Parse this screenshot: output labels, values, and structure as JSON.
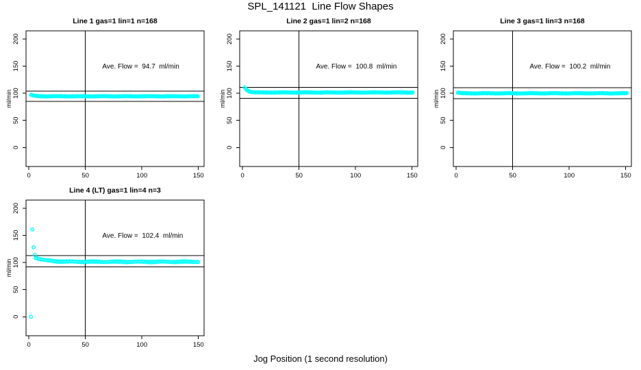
{
  "page": {
    "main_title": "SPL_141121  Line Flow Shapes",
    "x_axis_label": "Jog Position (1 second resolution)",
    "y_axis_label": "ml/min",
    "background": "#ffffff"
  },
  "style": {
    "point_color": "#00ffff",
    "line_color": "#000000",
    "marker": "open-circle"
  },
  "axes": {
    "x_ticks": [
      0,
      50,
      100,
      150
    ],
    "y_ticks": [
      0,
      50,
      100,
      150,
      200
    ],
    "xlim": [
      -2.5,
      155
    ],
    "ylim": [
      -35,
      215
    ],
    "vline_x": 50,
    "grid": false
  },
  "chart_data": [
    {
      "type": "scatter",
      "line": 1,
      "gas": 1,
      "lin": 1,
      "n": 168,
      "title": "Line 1 gas=1 lin=1 n=168",
      "annotation": "Ave. Flow =  94.7  ml/min",
      "ave_flow_ml_min": 94.7,
      "ref_lines_y": [
        104.2,
        85.2
      ],
      "vline_x": 50,
      "annotation_xy": [
        65,
        150
      ],
      "notable_points": [],
      "band": {
        "x_from": 2,
        "x_to": 150.5,
        "step": 0.9,
        "y_start": 97.2,
        "y_settle": 94.4,
        "tau": 2.5,
        "jitter": 0.55
      }
    },
    {
      "type": "scatter",
      "line": 2,
      "gas": 1,
      "lin": 2,
      "n": 168,
      "title": "Line 2 gas=1 lin=2 n=168",
      "annotation": "Ave. Flow =  100.8  ml/min",
      "ave_flow_ml_min": 100.8,
      "ref_lines_y": [
        110.9,
        90.7
      ],
      "vline_x": 50,
      "annotation_xy": [
        65,
        150
      ],
      "notable_points": [],
      "band": {
        "x_from": 2,
        "x_to": 151,
        "step": 0.9,
        "y_start": 111,
        "y_settle": 101.4,
        "tau": 2.6,
        "jitter": 0.6
      }
    },
    {
      "type": "scatter",
      "line": 3,
      "gas": 1,
      "lin": 3,
      "n": 168,
      "title": "Line 3 gas=1 lin=3 n=168",
      "annotation": "Ave. Flow =  100.2  ml/min",
      "ave_flow_ml_min": 100.2,
      "ref_lines_y": [
        110.2,
        90.2
      ],
      "vline_x": 50,
      "annotation_xy": [
        65,
        150
      ],
      "notable_points": [],
      "band": {
        "x_from": 1.5,
        "x_to": 151,
        "step": 0.9,
        "y_start": 101.2,
        "y_settle": 99.9,
        "tau": 2,
        "jitter": 0.65
      }
    },
    {
      "type": "scatter",
      "line": 4,
      "gas": 1,
      "lin": 4,
      "n": 3,
      "title": "Line 4 (LT) gas=1 lin=4 n=3",
      "annotation": "Ave. Flow =  102.4  ml/min",
      "ave_flow_ml_min": 102.4,
      "ref_lines_y": [
        112.6,
        92.2
      ],
      "vline_x": 50,
      "annotation_xy": [
        65,
        150
      ],
      "notable_points": [
        [
          1.8,
          0
        ],
        [
          3,
          161
        ],
        [
          4.2,
          128
        ],
        [
          5.3,
          114
        ]
      ],
      "band": {
        "x_from": 6,
        "x_to": 150.5,
        "step": 1.25,
        "y_start": 109,
        "y_settle": 101.3,
        "tau": 9,
        "jitter": 1.15
      }
    }
  ]
}
